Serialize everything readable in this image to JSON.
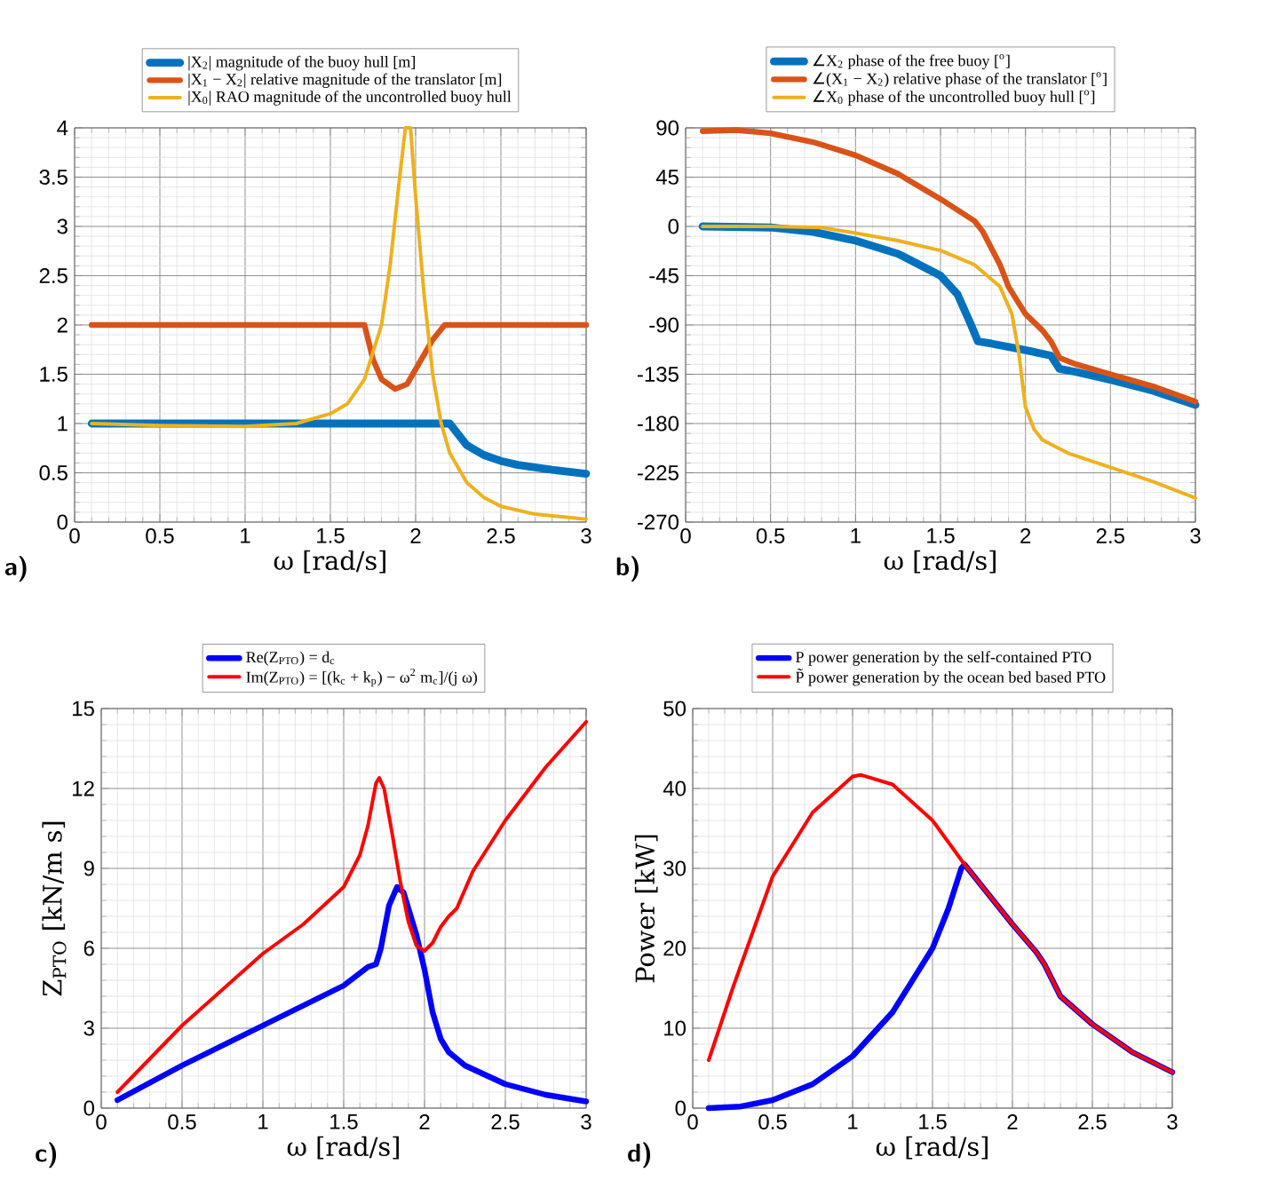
{
  "chart_data": [
    {
      "type": "line",
      "xlabel": "ω [rad/s]",
      "annotations": [
        "a)"
      ],
      "xlim": [
        0,
        3
      ],
      "xticks": [
        0,
        0.5,
        1,
        1.5,
        2,
        2.5,
        3
      ],
      "ylim": [
        0,
        4
      ],
      "yticks": [
        0,
        0.5,
        1,
        1.5,
        2,
        2.5,
        3,
        3.5,
        4
      ],
      "grid": true,
      "legend": "top",
      "series": [
        {
          "name": "|X$_{2}$| magnitude of the buoy hull [m]",
          "color": "#0072bd",
          "x": [
            0.1,
            0.5,
            1.0,
            1.5,
            2.0,
            2.2,
            2.3,
            2.4,
            2.5,
            2.6,
            2.8,
            3.0
          ],
          "values": [
            1,
            1,
            1,
            1,
            1,
            1,
            0.78,
            0.68,
            0.62,
            0.58,
            0.53,
            0.49
          ]
        },
        {
          "name": "|X$_{1}$ − X$_{2}$| relative magnitude of the translator [m]",
          "color": "#d95319",
          "x": [
            0.1,
            1.0,
            1.7,
            1.75,
            1.8,
            1.88,
            1.95,
            2.0,
            2.1,
            2.17,
            2.5,
            3.0
          ],
          "values": [
            2,
            2,
            2,
            1.65,
            1.45,
            1.35,
            1.4,
            1.55,
            1.85,
            2,
            2,
            2
          ]
        },
        {
          "name": "|X$_{0}$| RAO magnitude of the uncontrolled buoy hull",
          "color": "#edb120",
          "x": [
            0.1,
            0.5,
            1.0,
            1.3,
            1.5,
            1.6,
            1.7,
            1.8,
            1.85,
            1.9,
            1.94,
            1.97,
            2.0,
            2.05,
            2.1,
            2.15,
            2.2,
            2.3,
            2.4,
            2.5,
            2.7,
            3.0
          ],
          "values": [
            1.0,
            0.98,
            0.97,
            1.0,
            1.1,
            1.2,
            1.45,
            2.0,
            2.6,
            3.4,
            4,
            4,
            3.3,
            2.3,
            1.5,
            1.0,
            0.7,
            0.4,
            0.25,
            0.16,
            0.08,
            0.03
          ]
        }
      ]
    },
    {
      "type": "line",
      "xlabel": "ω [rad/s]",
      "annotations": [
        "b)"
      ],
      "xlim": [
        0,
        3
      ],
      "xticks": [
        0,
        0.5,
        1,
        1.5,
        2,
        2.5,
        3
      ],
      "ylim": [
        -270,
        90
      ],
      "yticks": [
        -270,
        -225,
        -180,
        -135,
        -90,
        -45,
        0,
        45,
        90
      ],
      "grid": true,
      "legend": "top",
      "series": [
        {
          "name": "∠X$_{2}$ phase of the free buoy [$^{o}$]",
          "color": "#0072bd",
          "x": [
            0.1,
            0.5,
            0.75,
            1.0,
            1.25,
            1.5,
            1.6,
            1.68,
            1.72,
            1.8,
            2.0,
            2.15,
            2.2,
            2.3,
            2.5,
            2.75,
            3.0
          ],
          "values": [
            0,
            -1,
            -5,
            -13,
            -25,
            -45,
            -62,
            -90,
            -105,
            -107,
            -113,
            -118,
            -130,
            -133,
            -140,
            -150,
            -163
          ]
        },
        {
          "name": "∠(X$_{1}$ − X$_{2}$) relative phase of the translator [$^{o}$]",
          "color": "#d95319",
          "x": [
            0.1,
            0.3,
            0.5,
            0.75,
            1.0,
            1.25,
            1.5,
            1.7,
            1.75,
            1.85,
            1.9,
            2.0,
            2.1,
            2.15,
            2.2,
            2.3,
            2.5,
            2.75,
            3.0
          ],
          "values": [
            87,
            88,
            85,
            77,
            65,
            48,
            25,
            5,
            -5,
            -35,
            -55,
            -80,
            -95,
            -105,
            -120,
            -126,
            -135,
            -146,
            -160
          ]
        },
        {
          "name": "∠X$_{0}$ phase of the uncontrolled buoy hull [$^{o}$]",
          "color": "#edb120",
          "x": [
            0.1,
            0.5,
            0.8,
            1.0,
            1.25,
            1.5,
            1.7,
            1.85,
            1.92,
            1.96,
            2.0,
            2.05,
            2.1,
            2.25,
            2.5,
            2.75,
            3.0
          ],
          "values": [
            0,
            0,
            -1,
            -6,
            -13,
            -22,
            -35,
            -55,
            -80,
            -115,
            -165,
            -185,
            -195,
            -207,
            -220,
            -233,
            -248
          ]
        }
      ]
    },
    {
      "type": "line",
      "xlabel": "ω [rad/s]",
      "ylabel": "Z$_{PTO}$ [kN/m s]",
      "annotations": [
        "c)"
      ],
      "xlim": [
        0,
        3
      ],
      "xticks": [
        0,
        0.5,
        1,
        1.5,
        2,
        2.5,
        3
      ],
      "ylim": [
        0,
        15
      ],
      "yticks": [
        0,
        3,
        6,
        9,
        12,
        15
      ],
      "grid": true,
      "legend": "top",
      "series": [
        {
          "name": "Re(Z$_{PTO}$) = d$_{c}$",
          "color": "#0000ff",
          "x": [
            0.1,
            0.5,
            1.0,
            1.5,
            1.65,
            1.7,
            1.73,
            1.78,
            1.83,
            1.87,
            1.9,
            1.95,
            2.0,
            2.05,
            2.1,
            2.15,
            2.25,
            2.5,
            2.75,
            3.0
          ],
          "values": [
            0.3,
            1.6,
            3.1,
            4.6,
            5.3,
            5.4,
            6.0,
            7.6,
            8.3,
            8.1,
            7.5,
            6.5,
            5.2,
            3.6,
            2.6,
            2.1,
            1.6,
            0.9,
            0.5,
            0.25
          ]
        },
        {
          "name": "Im(Z$_{PTO}$) = [(k$_{c}$ + k$_{p}$) − ω$^{2}$ m$_{c}$]/(j ω)",
          "color": "#ff0000",
          "x": [
            0.1,
            0.5,
            1.0,
            1.25,
            1.5,
            1.6,
            1.65,
            1.7,
            1.72,
            1.75,
            1.8,
            1.85,
            1.9,
            1.95,
            2.0,
            2.05,
            2.1,
            2.15,
            2.2,
            2.3,
            2.5,
            2.75,
            3.0
          ],
          "values": [
            0.6,
            3.1,
            5.8,
            6.9,
            8.3,
            9.5,
            10.6,
            12.2,
            12.4,
            12.0,
            10.3,
            8.5,
            7.0,
            6.1,
            5.9,
            6.2,
            6.8,
            7.2,
            7.5,
            8.9,
            10.8,
            12.8,
            14.5
          ]
        }
      ]
    },
    {
      "type": "line",
      "xlabel": "ω [rad/s]",
      "ylabel": "Power [kW]",
      "annotations": [
        "d)"
      ],
      "xlim": [
        0,
        3
      ],
      "xticks": [
        0,
        0.5,
        1,
        1.5,
        2,
        2.5,
        3
      ],
      "ylim": [
        0,
        50
      ],
      "yticks": [
        0,
        10,
        20,
        30,
        40,
        50
      ],
      "grid": true,
      "legend": "top",
      "series": [
        {
          "name": "P power generation by the self-contained PTO",
          "color": "#0000ff",
          "x": [
            0.1,
            0.3,
            0.5,
            0.75,
            1.0,
            1.25,
            1.5,
            1.6,
            1.68,
            1.7,
            1.9,
            2.0,
            2.15,
            2.2,
            2.3,
            2.5,
            2.75,
            3.0
          ],
          "values": [
            0,
            0.2,
            1,
            3,
            6.5,
            12,
            20,
            25,
            30,
            30.5,
            25.5,
            23,
            19.5,
            18,
            14,
            10.5,
            7,
            4.5
          ]
        },
        {
          "name": "P̃ power generation by the ocean bed based PTO",
          "color": "#ff0000",
          "x": [
            0.1,
            0.25,
            0.5,
            0.75,
            1.0,
            1.05,
            1.25,
            1.5,
            1.7,
            1.9,
            2.0,
            2.15,
            2.2,
            2.3,
            2.5,
            2.75,
            3.0
          ],
          "values": [
            6,
            15,
            29,
            37,
            41.5,
            41.7,
            40.5,
            36,
            30.5,
            25.5,
            23,
            19.5,
            18,
            14,
            10.5,
            7,
            4.5
          ]
        }
      ]
    }
  ]
}
